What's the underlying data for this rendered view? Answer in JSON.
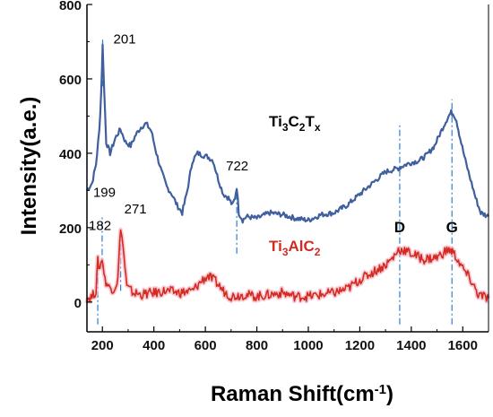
{
  "chart_data": {
    "type": "line",
    "xlabel": "Raman Shift(cm",
    "xlabel_sup": "-1",
    "xlabel_end": ")",
    "ylabel": "Intensity(a.e.)",
    "xlim": [
      140,
      1700
    ],
    "ylim": [
      -80,
      800
    ],
    "x_ticks": [
      200,
      400,
      600,
      800,
      1000,
      1200,
      1400,
      1600
    ],
    "y_ticks": [
      0,
      200,
      400,
      600,
      800
    ],
    "grid": false,
    "series": [
      {
        "name": "Ti3C2Tx",
        "name_parts": {
          "base1": "Ti",
          "sub1": "3",
          "base2": "C",
          "sub2": "2",
          "base3": "T",
          "sub3": "x"
        },
        "color": "#3f5f9e",
        "x": [
          140,
          160,
          175,
          188,
          195,
          201,
          207,
          215,
          230,
          250,
          270,
          290,
          310,
          330,
          350,
          370,
          390,
          410,
          430,
          450,
          470,
          490,
          510,
          530,
          550,
          570,
          590,
          610,
          630,
          650,
          670,
          690,
          705,
          715,
          722,
          730,
          745,
          760,
          800,
          850,
          900,
          950,
          1000,
          1050,
          1100,
          1150,
          1200,
          1250,
          1300,
          1350,
          1380,
          1400,
          1430,
          1460,
          1490,
          1510,
          1530,
          1545,
          1555,
          1565,
          1575,
          1590,
          1610,
          1630,
          1650,
          1670,
          1700
        ],
        "y": [
          300,
          320,
          370,
          460,
          560,
          690,
          570,
          430,
          400,
          440,
          465,
          430,
          420,
          450,
          470,
          480,
          460,
          400,
          350,
          310,
          290,
          260,
          240,
          300,
          380,
          400,
          395,
          390,
          380,
          330,
          290,
          280,
          260,
          280,
          310,
          240,
          220,
          230,
          225,
          240,
          235,
          225,
          220,
          235,
          240,
          260,
          290,
          320,
          350,
          360,
          370,
          375,
          380,
          395,
          420,
          450,
          480,
          500,
          510,
          505,
          490,
          440,
          380,
          330,
          280,
          240,
          230
        ]
      },
      {
        "name": "Ti3AlC2",
        "name_parts": {
          "base1": "Ti",
          "sub1": "3",
          "base2": "AlC",
          "sub2": "2"
        },
        "color": "#d42a1f",
        "x": [
          140,
          160,
          175,
          182,
          190,
          199,
          210,
          225,
          245,
          260,
          271,
          280,
          295,
          320,
          350,
          400,
          450,
          500,
          550,
          590,
          610,
          640,
          670,
          700,
          750,
          800,
          850,
          900,
          950,
          1000,
          1050,
          1100,
          1150,
          1200,
          1250,
          1300,
          1330,
          1350,
          1370,
          1400,
          1450,
          1500,
          1530,
          1550,
          1560,
          1575,
          1600,
          1630,
          1660,
          1700
        ],
        "y": [
          10,
          15,
          30,
          110,
          90,
          120,
          60,
          40,
          35,
          60,
          205,
          150,
          40,
          25,
          20,
          25,
          30,
          25,
          30,
          60,
          70,
          55,
          30,
          15,
          20,
          15,
          20,
          25,
          15,
          15,
          20,
          25,
          35,
          60,
          80,
          100,
          120,
          140,
          140,
          130,
          115,
          120,
          135,
          140,
          135,
          120,
          90,
          60,
          20,
          10
        ]
      }
    ],
    "peak_labels": [
      {
        "text": "201",
        "x": 201,
        "y": 690,
        "dx": 12,
        "dy": -2
      },
      {
        "text": "722",
        "x": 722,
        "y": 310,
        "dx": -12,
        "dy": -18
      },
      {
        "text": "199",
        "x": 199,
        "y": 240,
        "dx": -10,
        "dy": -18
      },
      {
        "text": "182",
        "x": 182,
        "y": 150,
        "dx": -10,
        "dy": -18
      },
      {
        "text": "271",
        "x": 271,
        "y": 205,
        "dx": 4,
        "dy": -14
      }
    ],
    "band_labels": [
      {
        "text": "D",
        "x": 1355,
        "y": 200
      },
      {
        "text": "G",
        "x": 1558,
        "y": 200
      }
    ],
    "markers": [
      {
        "name": "marker-201",
        "x": 201,
        "y1": 580,
        "y2": 710
      },
      {
        "name": "marker-722",
        "x": 722,
        "y1": 130,
        "y2": 290
      },
      {
        "name": "marker-199",
        "x": 199,
        "y1": 90,
        "y2": 230
      },
      {
        "name": "marker-182",
        "x": 182,
        "y1": -60,
        "y2": 95
      },
      {
        "name": "marker-271",
        "x": 271,
        "y1": 30,
        "y2": 200
      },
      {
        "name": "marker-D",
        "x": 1355,
        "y1": -60,
        "y2": 475
      },
      {
        "name": "marker-G",
        "x": 1558,
        "y1": -60,
        "y2": 545
      }
    ]
  }
}
